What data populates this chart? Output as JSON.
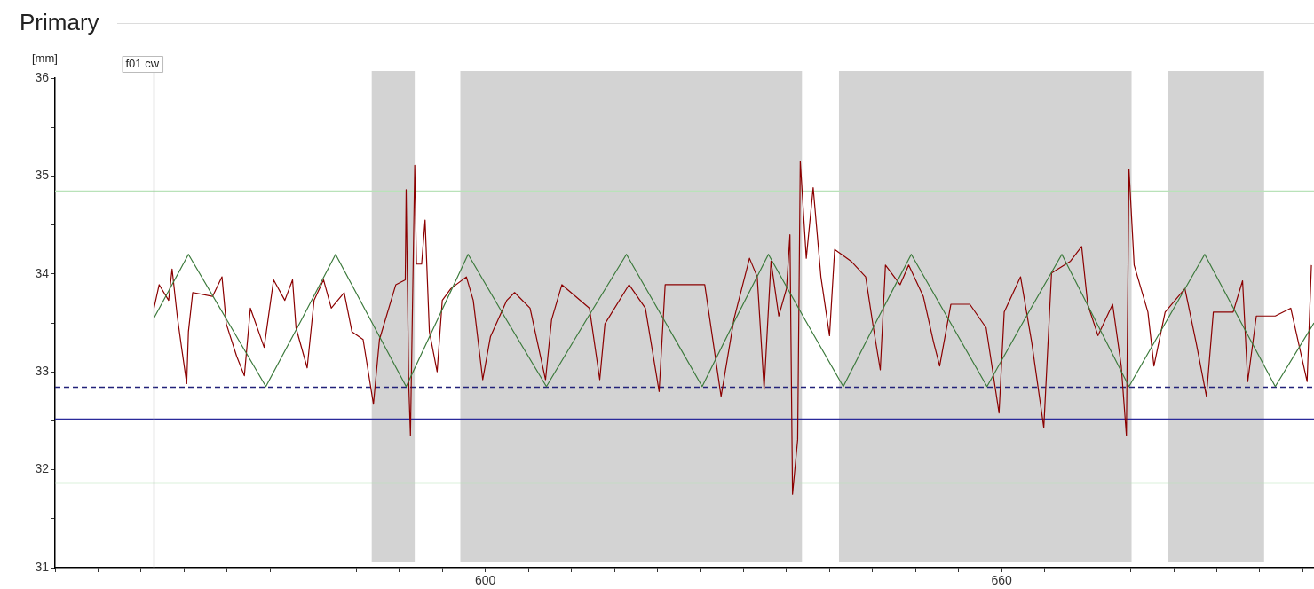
{
  "chart_data": {
    "type": "line",
    "title": "Primary",
    "ylabel": "[mm]",
    "xlim": [
      550,
      696.3
    ],
    "xticks": [
      {
        "value": 550,
        "label": null
      },
      {
        "value": 555,
        "label": null
      },
      {
        "value": 560,
        "label": null
      },
      {
        "value": 565,
        "label": null
      },
      {
        "value": 570,
        "label": null
      },
      {
        "value": 575,
        "label": null
      },
      {
        "value": 580,
        "label": null
      },
      {
        "value": 585,
        "label": null
      },
      {
        "value": 590,
        "label": null
      },
      {
        "value": 595,
        "label": null
      },
      600,
      {
        "value": 605,
        "label": null
      },
      {
        "value": 610,
        "label": null
      },
      {
        "value": 615,
        "label": null
      },
      {
        "value": 620,
        "label": null
      },
      {
        "value": 625,
        "label": null
      },
      {
        "value": 630,
        "label": null
      },
      {
        "value": 635,
        "label": null
      },
      {
        "value": 640,
        "label": null
      },
      {
        "value": 645,
        "label": null
      },
      {
        "value": 650,
        "label": null
      },
      {
        "value": 655,
        "label": null
      },
      660,
      {
        "value": 665,
        "label": null
      },
      {
        "value": 670,
        "label": null
      },
      {
        "value": 675,
        "label": null
      },
      {
        "value": 680,
        "label": null
      },
      {
        "value": 685,
        "label": null
      },
      {
        "value": 690,
        "label": null
      },
      {
        "value": 695,
        "label": null
      }
    ],
    "ylim": [
      31,
      36
    ],
    "yticks": [
      31,
      {
        "value": 31.5,
        "label": null
      },
      32,
      {
        "value": 32.5,
        "label": null
      },
      33,
      {
        "value": 33.5,
        "label": null
      },
      34,
      {
        "value": 34.5,
        "label": null
      },
      35,
      {
        "value": 35.5,
        "label": null
      },
      36
    ],
    "marker": "none",
    "line_style": "solid",
    "series": [
      {
        "color": "#3c7a3c",
        "x": [
          561.5,
          565.5,
          570,
          574.5,
          578.6,
          582.6,
          586.7,
          590.8,
          594.4,
          598.0,
          602.5,
          607.1,
          611.7,
          616.4,
          620.8,
          625.2,
          629,
          632.9,
          637.2,
          641.6,
          645.5,
          649.5,
          653.9,
          658.3,
          662.6,
          667.0,
          670.9,
          674.8,
          679.2,
          683.6,
          687.7,
          691.8,
          696.3
        ],
        "values": [
          33.55,
          34.2,
          33.525,
          32.85,
          33.525,
          34.2,
          33.525,
          32.85,
          33.525,
          34.2,
          33.525,
          32.85,
          33.525,
          34.2,
          33.525,
          32.85,
          33.525,
          34.2,
          33.525,
          32.85,
          33.525,
          34.2,
          33.525,
          32.85,
          33.525,
          34.2,
          33.525,
          32.85,
          33.525,
          34.2,
          33.525,
          32.85,
          33.5
        ]
      },
      {
        "color": "#8b0000",
        "x": [
          561.5,
          562.1,
          563.2,
          563.6,
          564.2,
          564.7,
          565.3,
          565.5,
          566.0,
          568.3,
          569.4,
          569.9,
          571.1,
          572.0,
          572.7,
          574.3,
          575.4,
          576.7,
          577.6,
          578.0,
          579.3,
          580.1,
          581.2,
          582.1,
          583.6,
          584.5,
          585.8,
          587.0,
          587.7,
          589.6,
          590.7,
          590.8,
          591.1,
          591.3,
          591.8,
          592.0,
          592.6,
          593.0,
          593.5,
          594.4,
          595.0,
          596.0,
          597.8,
          598.6,
          599.7,
          600.6,
          602.5,
          603.4,
          605.2,
          607.0,
          607.7,
          608.9,
          612.1,
          613.3,
          613.9,
          616.7,
          618.6,
          620.2,
          620.9,
          625.5,
          627.4,
          628.9,
          630.7,
          631.6,
          632.4,
          633.2,
          634.1,
          635.0,
          635.4,
          635.7,
          636.3,
          636.6,
          637.3,
          638.1,
          639.0,
          640.0,
          640.6,
          642.5,
          644.2,
          645.1,
          645.9,
          646.5,
          648.2,
          649.2,
          650.9,
          652.1,
          652.8,
          654.1,
          656.3,
          658.2,
          659.7,
          660.3,
          662.2,
          663.5,
          664.9,
          665.8,
          668.0,
          669.3,
          670.0,
          671.2,
          672.9,
          673.9,
          674.5,
          674.8,
          675.4,
          677.0,
          677.7,
          679.0,
          681.3,
          682.6,
          683.8,
          684.6,
          686.9,
          688.0,
          688.6,
          689.6,
          691.8,
          693.6,
          695.5,
          696.0
        ],
        "values": [
          33.65,
          33.89,
          33.73,
          34.05,
          33.57,
          33.25,
          32.88,
          33.41,
          33.81,
          33.77,
          33.97,
          33.49,
          33.16,
          32.96,
          33.65,
          33.25,
          33.94,
          33.73,
          33.94,
          33.45,
          33.04,
          33.73,
          33.94,
          33.65,
          33.81,
          33.41,
          33.33,
          32.67,
          33.33,
          33.89,
          33.94,
          34.86,
          32.88,
          32.35,
          35.11,
          34.1,
          34.1,
          34.55,
          33.41,
          33.0,
          33.73,
          33.85,
          33.97,
          33.73,
          32.92,
          33.36,
          33.73,
          33.81,
          33.65,
          32.92,
          33.53,
          33.89,
          33.65,
          32.92,
          33.49,
          33.89,
          33.65,
          32.8,
          33.89,
          33.89,
          32.75,
          33.54,
          34.16,
          33.97,
          32.82,
          34.13,
          33.57,
          33.85,
          34.4,
          31.75,
          32.31,
          35.15,
          34.16,
          34.88,
          33.97,
          33.37,
          34.25,
          34.13,
          33.97,
          33.45,
          33.02,
          34.09,
          33.89,
          34.09,
          33.77,
          33.3,
          33.06,
          33.69,
          33.69,
          33.45,
          32.58,
          33.61,
          33.97,
          33.3,
          32.43,
          34.01,
          34.13,
          34.28,
          33.69,
          33.37,
          33.69,
          33.06,
          32.35,
          35.07,
          34.09,
          33.61,
          33.06,
          33.61,
          33.85,
          33.3,
          32.75,
          33.61,
          33.61,
          33.93,
          32.9,
          33.57,
          33.57,
          33.65,
          32.9,
          34.09
        ]
      }
    ],
    "ref_lines": [
      {
        "axis": "y",
        "value": 34.85,
        "color": "#b9e2b9",
        "line_style": "solid"
      },
      {
        "axis": "y",
        "value": 31.87,
        "color": "#b9e2b9",
        "line_style": "solid"
      },
      {
        "axis": "y",
        "value": 32.85,
        "color": "#22227a",
        "line_style": "dashed"
      },
      {
        "axis": "y",
        "value": 32.52,
        "color": "#2a2a9a",
        "line_style": "solid"
      },
      {
        "axis": "x",
        "value": 561.5,
        "label": "f01 cw",
        "color": "#b0b0b0",
        "line_style": "solid"
      }
    ],
    "bands": [
      {
        "axis": "x",
        "from": 586.8,
        "to": 591.8,
        "color": "#d3d3d3"
      },
      {
        "axis": "x",
        "from": 597.1,
        "to": 636.8,
        "color": "#d3d3d3"
      },
      {
        "axis": "x",
        "from": 641.1,
        "to": 675.1,
        "color": "#d3d3d3"
      },
      {
        "axis": "x",
        "from": 679.3,
        "to": 690.5,
        "color": "#d3d3d3"
      }
    ]
  }
}
